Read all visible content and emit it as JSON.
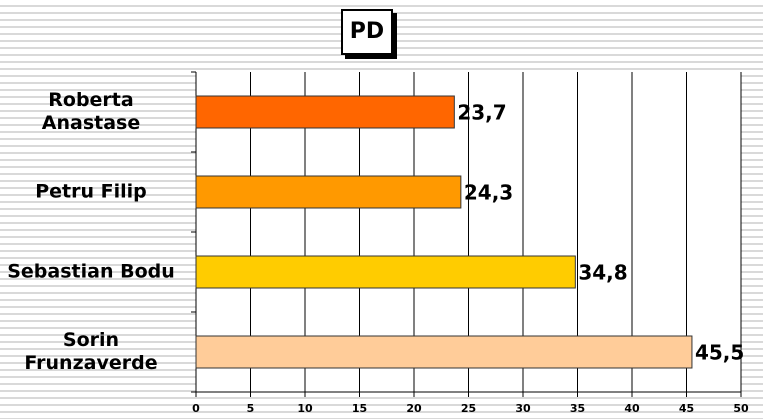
{
  "chart_data": {
    "type": "barh",
    "title": "PD",
    "categories": [
      "Roberta Anastase",
      "Petru Filip",
      "Sebastian Bodu",
      "Sorin Frunzaverde"
    ],
    "values": [
      23.7,
      24.3,
      34.8,
      45.5
    ],
    "value_labels": [
      "23,7",
      "24,3",
      "34,8",
      "45,5"
    ],
    "colors": [
      "#ff6600",
      "#ff9900",
      "#ffcc00",
      "#ffcc99"
    ],
    "xlim": [
      0,
      50
    ],
    "xticks": [
      0,
      5,
      10,
      15,
      20,
      25,
      30,
      35,
      40,
      45,
      50
    ],
    "grid": true
  }
}
